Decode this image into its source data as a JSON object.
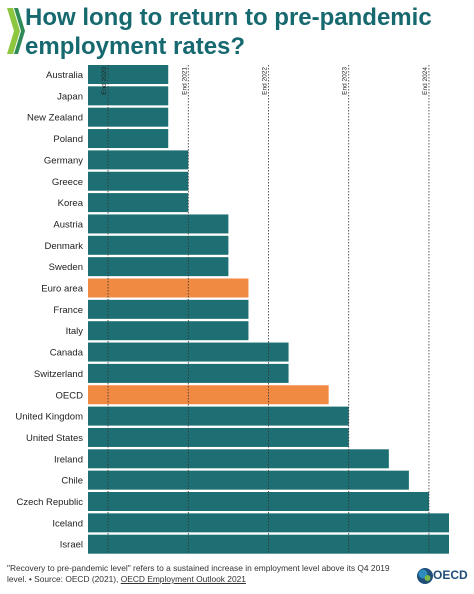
{
  "title": "How long to return to pre-pandemic employment rates?",
  "chart_data": {
    "type": "bar",
    "orientation": "horizontal",
    "categories": [
      "Australia",
      "Japan",
      "New Zealand",
      "Poland",
      "Germany",
      "Greece",
      "Korea",
      "Austria",
      "Denmark",
      "Sweden",
      "Euro area",
      "France",
      "Italy",
      "Canada",
      "Switzerland",
      "OECD",
      "United Kingdom",
      "United States",
      "Ireland",
      "Chile",
      "Czech Republic",
      "Iceland",
      "Israel"
    ],
    "values": [
      2020.75,
      2020.75,
      2020.75,
      2020.75,
      2021.0,
      2021.0,
      2021.0,
      2021.5,
      2021.5,
      2021.5,
      2021.75,
      2021.75,
      2021.75,
      2022.25,
      2022.25,
      2022.75,
      2023.0,
      2023.0,
      2023.5,
      2023.75,
      2024.0,
      2024.25,
      2024.25
    ],
    "highlight": [
      "Euro area",
      "OECD"
    ],
    "reference_lines": [
      "End 2020",
      "End 2021",
      "End 2022",
      "End 2023",
      "End 2024"
    ],
    "xlim": [
      2019.75,
      2024.25
    ],
    "colors": {
      "bar": "#1e6f73",
      "highlight": "#f08a42",
      "gridline": "#333333"
    }
  },
  "footnote": {
    "text": "\"Recovery to pre-pandemic level\" refers to a sustained increase in employment level above its Q4 2019 level. • Source: OECD (2021), ",
    "link": "OECD Employment Outlook 2021"
  },
  "logo": {
    "text": "OECD",
    "colors": [
      "#1f4e79",
      "#2e8bc0",
      "#7ab648",
      "#c9c9c9"
    ]
  },
  "brand_mark_colors": [
    "#8dc63f",
    "#2e8b57"
  ]
}
